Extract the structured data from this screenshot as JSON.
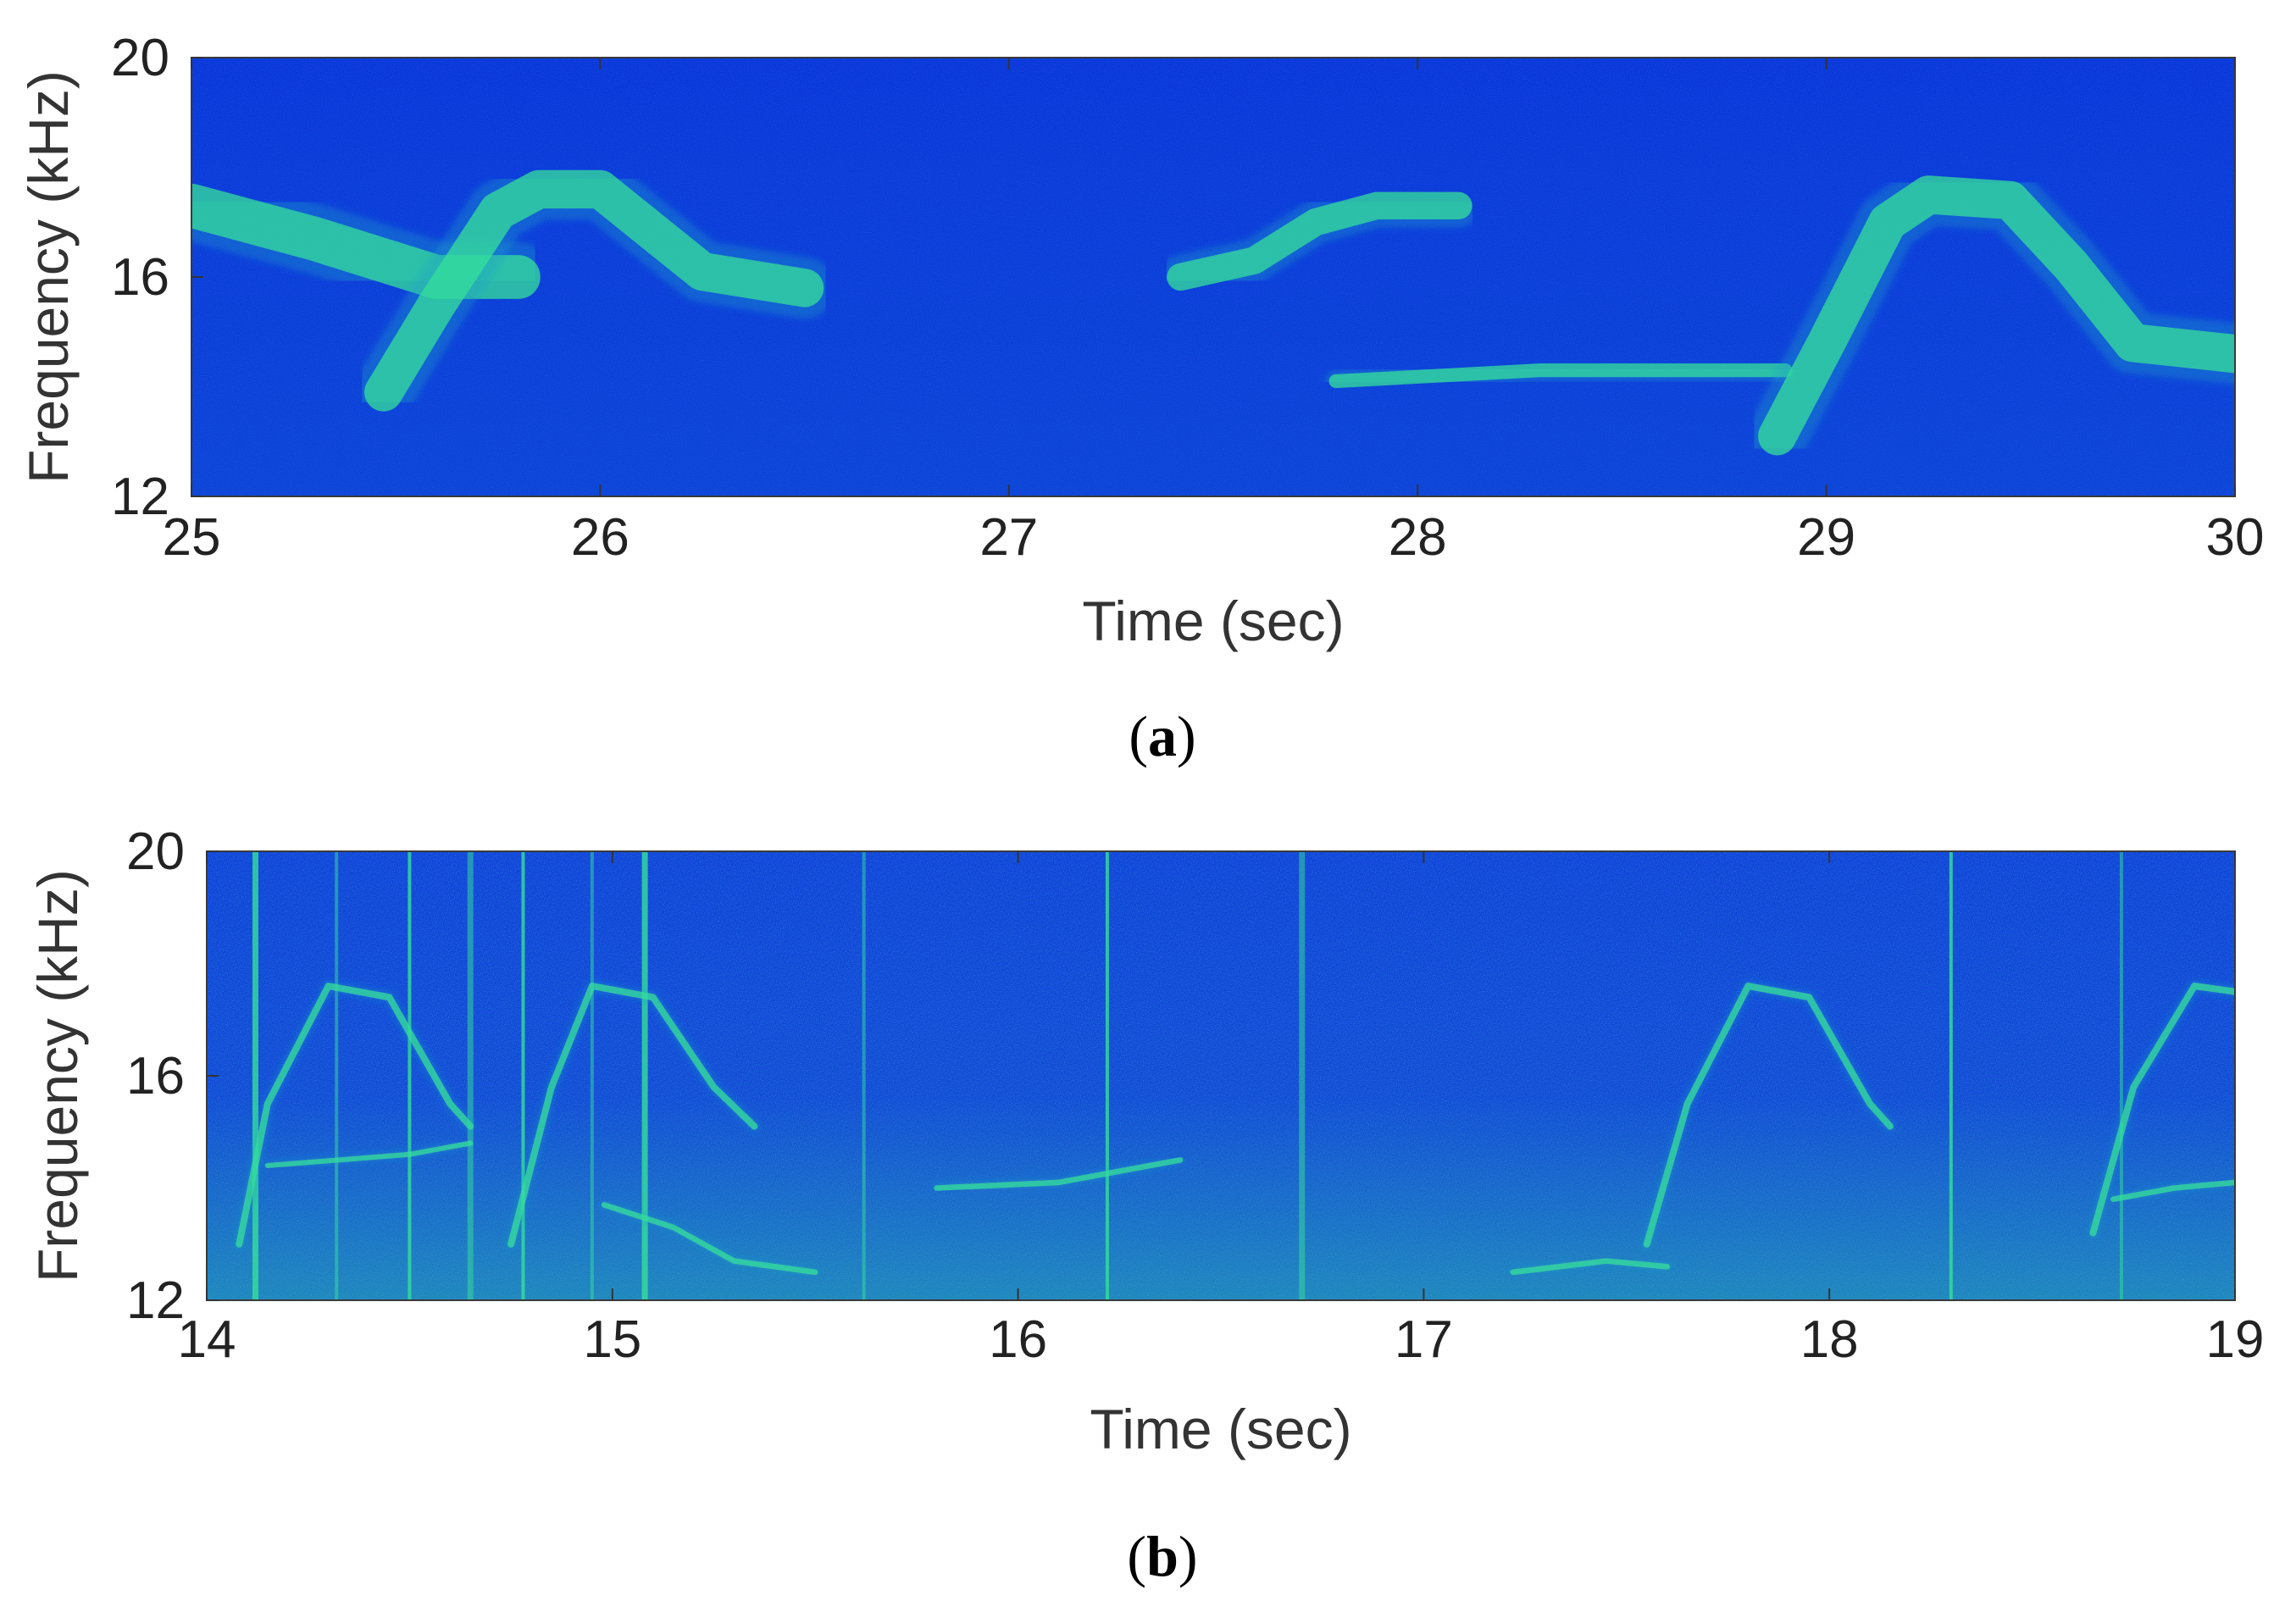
{
  "chart_data": [
    {
      "type": "heatmap",
      "panel": "(a)",
      "panel_letter": "a",
      "xlabel": "Time (sec)",
      "ylabel": "Frequency (kHz)",
      "xlim": [
        25,
        30
      ],
      "ylim": [
        12,
        20
      ],
      "xticks": [
        25,
        26,
        27,
        28,
        29,
        30
      ],
      "yticks": [
        12,
        16,
        20
      ],
      "grid": false,
      "colormap": [
        "#0a2fd8",
        "#1253e6",
        "#1fa0c8",
        "#36e09a"
      ],
      "background_color": "#0b35d9",
      "contours": [
        {
          "points": [
            [
              25.0,
              17.3
            ],
            [
              25.3,
              16.7
            ],
            [
              25.6,
              16.0
            ],
            [
              25.8,
              16.0
            ]
          ],
          "thickness": 0.8
        },
        {
          "points": [
            [
              25.47,
              13.9
            ],
            [
              25.6,
              15.5
            ],
            [
              25.75,
              17.2
            ],
            [
              25.85,
              17.6
            ],
            [
              26.0,
              17.6
            ],
            [
              26.1,
              17.0
            ],
            [
              26.25,
              16.1
            ],
            [
              26.5,
              15.8
            ]
          ],
          "thickness": 0.7
        },
        {
          "points": [
            [
              27.42,
              16.0
            ],
            [
              27.6,
              16.3
            ],
            [
              27.75,
              17.0
            ],
            [
              27.9,
              17.3
            ],
            [
              28.1,
              17.3
            ]
          ],
          "thickness": 0.5
        },
        {
          "points": [
            [
              27.8,
              14.1
            ],
            [
              28.3,
              14.3
            ],
            [
              28.9,
              14.3
            ]
          ],
          "thickness": 0.25
        },
        {
          "points": [
            [
              28.88,
              13.1
            ],
            [
              29.0,
              14.8
            ],
            [
              29.15,
              17.0
            ],
            [
              29.25,
              17.5
            ],
            [
              29.45,
              17.4
            ],
            [
              29.6,
              16.2
            ],
            [
              29.75,
              14.8
            ],
            [
              30.0,
              14.6
            ]
          ],
          "thickness": 0.7
        }
      ]
    },
    {
      "type": "heatmap",
      "panel": "(b)",
      "panel_letter": "b",
      "xlabel": "Time (sec)",
      "ylabel": "Frequency (kHz)",
      "xlim": [
        14,
        19
      ],
      "ylim": [
        12,
        20
      ],
      "xticks": [
        14,
        15,
        16,
        17,
        18,
        19
      ],
      "yticks": [
        12,
        16,
        20
      ],
      "grid": false,
      "colormap": [
        "#0a2fd8",
        "#1253e6",
        "#1fa0c8",
        "#36e09a"
      ],
      "background_color": "#1040d8",
      "vertical_clicks": [
        14.12,
        14.32,
        14.5,
        14.65,
        14.78,
        14.95,
        15.08,
        15.62,
        16.22,
        16.7,
        18.3,
        18.72
      ],
      "contours": [
        {
          "points": [
            [
              14.08,
              13.0
            ],
            [
              14.15,
              15.5
            ],
            [
              14.3,
              17.6
            ],
            [
              14.45,
              17.4
            ],
            [
              14.6,
              15.5
            ],
            [
              14.65,
              15.1
            ]
          ],
          "thickness": 0.12
        },
        {
          "points": [
            [
              14.15,
              14.4
            ],
            [
              14.5,
              14.6
            ],
            [
              14.65,
              14.8
            ]
          ],
          "thickness": 0.08
        },
        {
          "points": [
            [
              14.75,
              13.0
            ],
            [
              14.85,
              15.8
            ],
            [
              14.95,
              17.6
            ],
            [
              15.1,
              17.4
            ],
            [
              15.25,
              15.8
            ],
            [
              15.35,
              15.1
            ]
          ],
          "thickness": 0.12
        },
        {
          "points": [
            [
              14.98,
              13.7
            ],
            [
              15.15,
              13.3
            ],
            [
              15.3,
              12.7
            ],
            [
              15.5,
              12.5
            ]
          ],
          "thickness": 0.1
        },
        {
          "points": [
            [
              15.8,
              14.0
            ],
            [
              16.1,
              14.1
            ],
            [
              16.4,
              14.5
            ]
          ],
          "thickness": 0.1
        },
        {
          "points": [
            [
              17.22,
              12.5
            ],
            [
              17.45,
              12.7
            ],
            [
              17.6,
              12.6
            ]
          ],
          "thickness": 0.1
        },
        {
          "points": [
            [
              17.55,
              13.0
            ],
            [
              17.65,
              15.5
            ],
            [
              17.8,
              17.6
            ],
            [
              17.95,
              17.4
            ],
            [
              18.1,
              15.5
            ],
            [
              18.15,
              15.1
            ]
          ],
          "thickness": 0.12
        },
        {
          "points": [
            [
              18.65,
              13.2
            ],
            [
              18.75,
              15.8
            ],
            [
              18.9,
              17.6
            ],
            [
              19.0,
              17.5
            ]
          ],
          "thickness": 0.12
        },
        {
          "points": [
            [
              18.7,
              13.8
            ],
            [
              18.85,
              14.0
            ],
            [
              19.0,
              14.1
            ]
          ],
          "thickness": 0.1
        }
      ]
    }
  ]
}
